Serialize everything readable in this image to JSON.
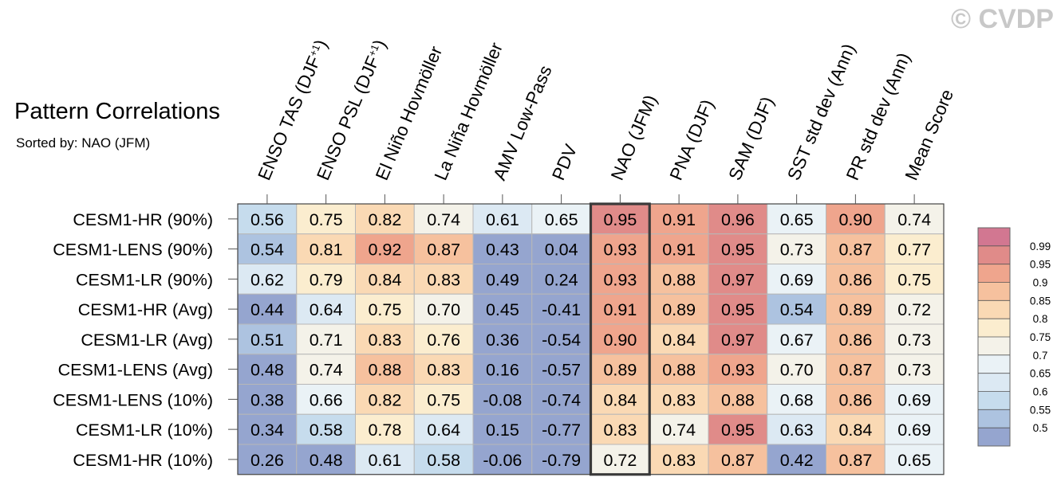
{
  "title": "Pattern Correlations",
  "subtitle": "Sorted by: NAO (JFM)",
  "watermark": "© CVDP",
  "chart_data": {
    "type": "table",
    "title": "Pattern Correlations",
    "subtitle": "Sorted by: NAO (JFM)",
    "columns": [
      "ENSO TAS (DJF+1)",
      "ENSO PSL (DJF+1)",
      "El Niño Hovmöller",
      "La Niña Hovmöller",
      "AMV Low-Pass",
      "PDV",
      "NAO (JFM)",
      "PNA (DJF)",
      "SAM (DJF)",
      "SST std dev (Ann)",
      "PR std dev (Ann)",
      "Mean Score"
    ],
    "highlighted_column": "NAO (JFM)",
    "rows": [
      {
        "name": "CESM1-HR (90%)",
        "values": [
          0.56,
          0.75,
          0.82,
          0.74,
          0.61,
          0.65,
          0.95,
          0.91,
          0.96,
          0.65,
          0.9,
          0.74
        ]
      },
      {
        "name": "CESM1-LENS (90%)",
        "values": [
          0.54,
          0.81,
          0.92,
          0.87,
          0.43,
          0.04,
          0.93,
          0.91,
          0.95,
          0.73,
          0.87,
          0.77
        ]
      },
      {
        "name": "CESM1-LR (90%)",
        "values": [
          0.62,
          0.79,
          0.84,
          0.83,
          0.49,
          0.24,
          0.93,
          0.88,
          0.97,
          0.69,
          0.86,
          0.75
        ]
      },
      {
        "name": "CESM1-HR (Avg)",
        "values": [
          0.44,
          0.64,
          0.75,
          0.7,
          0.45,
          -0.41,
          0.91,
          0.89,
          0.95,
          0.54,
          0.89,
          0.72
        ]
      },
      {
        "name": "CESM1-LR (Avg)",
        "values": [
          0.51,
          0.71,
          0.83,
          0.76,
          0.36,
          -0.54,
          0.9,
          0.84,
          0.97,
          0.67,
          0.86,
          0.73
        ]
      },
      {
        "name": "CESM1-LENS (Avg)",
        "values": [
          0.48,
          0.74,
          0.88,
          0.83,
          0.16,
          -0.57,
          0.89,
          0.88,
          0.93,
          0.7,
          0.87,
          0.73
        ]
      },
      {
        "name": "CESM1-LENS (10%)",
        "values": [
          0.38,
          0.66,
          0.82,
          0.75,
          -0.08,
          -0.74,
          0.84,
          0.83,
          0.88,
          0.68,
          0.86,
          0.69
        ]
      },
      {
        "name": "CESM1-LR (10%)",
        "values": [
          0.34,
          0.58,
          0.78,
          0.64,
          0.15,
          -0.77,
          0.83,
          0.74,
          0.95,
          0.63,
          0.84,
          0.69
        ]
      },
      {
        "name": "CESM1-HR (10%)",
        "values": [
          0.26,
          0.48,
          0.61,
          0.58,
          -0.06,
          -0.79,
          0.72,
          0.83,
          0.87,
          0.42,
          0.87,
          0.65
        ]
      }
    ],
    "colorbar": {
      "ticks": [
        "0.99",
        "0.95",
        "0.9",
        "0.85",
        "0.8",
        "0.75",
        "0.7",
        "0.65",
        "0.6",
        "0.55",
        "0.5"
      ],
      "thresholds": [
        0.5,
        0.55,
        0.6,
        0.65,
        0.7,
        0.75,
        0.8,
        0.85,
        0.9,
        0.95,
        0.99
      ],
      "colors": [
        "#95a5cf",
        "#adc3e0",
        "#c6dced",
        "#dce9f3",
        "#eaf2f6",
        "#f4f2e9",
        "#fbedcf",
        "#fad9b4",
        "#f6c19e",
        "#efa58d",
        "#e08b89",
        "#d27791"
      ]
    }
  }
}
